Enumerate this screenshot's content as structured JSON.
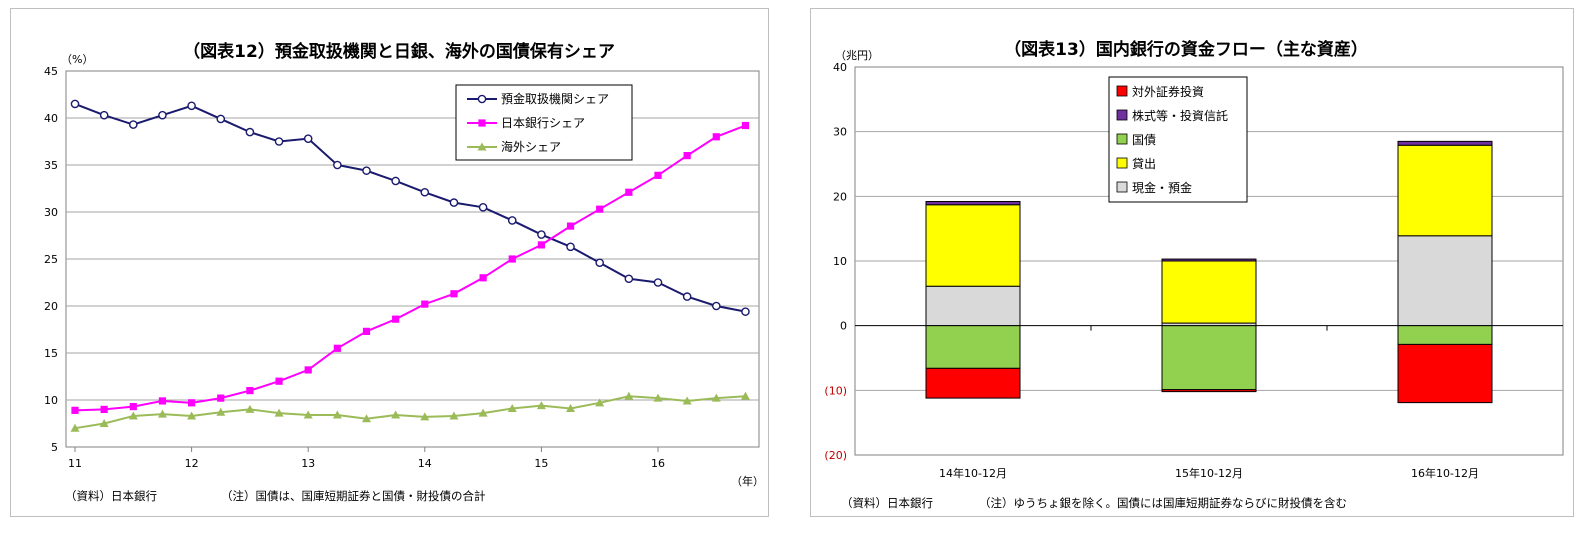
{
  "chart_data": [
    {
      "type": "line",
      "title": "（図表12）預金取扱機関と日銀、海外の国債保有シェア",
      "ylabel": "（%）",
      "xlabel": "（年）",
      "ylim": [
        5,
        45
      ],
      "yticks": [
        5,
        10,
        15,
        20,
        25,
        30,
        35,
        40,
        45
      ],
      "xlim": [
        11,
        16.75
      ],
      "xticks": [
        11,
        12,
        13,
        14,
        15,
        16
      ],
      "x": [
        11,
        11.25,
        11.5,
        11.75,
        12,
        12.25,
        12.5,
        12.75,
        13,
        13.25,
        13.5,
        13.75,
        14,
        14.25,
        14.5,
        14.75,
        15,
        15.25,
        15.5,
        15.75,
        16,
        16.25,
        16.5,
        16.75
      ],
      "series": [
        {
          "name": "預金取扱機関シェア",
          "color": "#1a1a6e",
          "marker": "circle",
          "values": [
            41.5,
            40.3,
            39.3,
            40.3,
            41.3,
            39.9,
            38.5,
            37.5,
            37.8,
            35.0,
            34.4,
            33.3,
            32.1,
            31.0,
            30.5,
            29.1,
            27.6,
            26.3,
            24.6,
            22.9,
            22.5,
            21.0,
            20.0,
            19.4
          ]
        },
        {
          "name": "日本銀行シェア",
          "color": "#ff00ff",
          "marker": "square",
          "values": [
            8.9,
            9.0,
            9.3,
            9.9,
            9.7,
            10.2,
            11.0,
            12.0,
            13.2,
            15.5,
            17.3,
            18.6,
            20.2,
            21.3,
            23.0,
            25.0,
            26.5,
            28.5,
            30.3,
            32.1,
            33.9,
            36.0,
            38.0,
            39.2
          ]
        },
        {
          "name": "海外シェア",
          "color": "#9bbb59",
          "marker": "triangle",
          "values": [
            7.0,
            7.5,
            8.3,
            8.5,
            8.3,
            8.7,
            9.0,
            8.6,
            8.4,
            8.4,
            8.0,
            8.4,
            8.2,
            8.3,
            8.6,
            9.1,
            9.4,
            9.1,
            9.7,
            10.4,
            10.2,
            9.9,
            10.2,
            10.4
          ]
        }
      ],
      "legend_position": "top-right",
      "grid": true,
      "source_note": "（資料）日本銀行",
      "note": "（注）国債は、国庫短期証券と国債・財投債の合計"
    },
    {
      "type": "bar",
      "stacked": true,
      "title": "（図表13）国内銀行の資金フロー（主な資産）",
      "ylabel": "（兆円）",
      "ylim": [
        -20,
        40
      ],
      "yticks": [
        40,
        30,
        20,
        10,
        0,
        -10,
        -20
      ],
      "ytick_labels": [
        "40",
        "30",
        "20",
        "10",
        "0",
        "(10)",
        "(20)"
      ],
      "negative_tick_color": "#c00000",
      "categories": [
        "14年10-12月",
        "15年10-12月",
        "16年10-12月"
      ],
      "series": [
        {
          "name": "対外証券投資",
          "color": "#ff0000",
          "values": [
            -4.6,
            -0.3,
            -9.0
          ]
        },
        {
          "name": "株式等・投資信託",
          "color": "#7030a0",
          "values": [
            0.5,
            0.3,
            0.6
          ]
        },
        {
          "name": "国債",
          "color": "#92d050",
          "values": [
            -6.6,
            -9.9,
            -2.9
          ]
        },
        {
          "name": "貸出",
          "color": "#ffff00",
          "values": [
            12.6,
            9.6,
            14.0
          ]
        },
        {
          "name": "現金・預金",
          "color": "#d9d9d9",
          "values": [
            6.1,
            0.4,
            13.9
          ]
        }
      ],
      "legend_position": "top",
      "grid": true,
      "source_note": "（資料）日本銀行",
      "note": "（注）ゆうちょ銀を除く。国債には国庫短期証券ならびに財投債を含む"
    }
  ]
}
